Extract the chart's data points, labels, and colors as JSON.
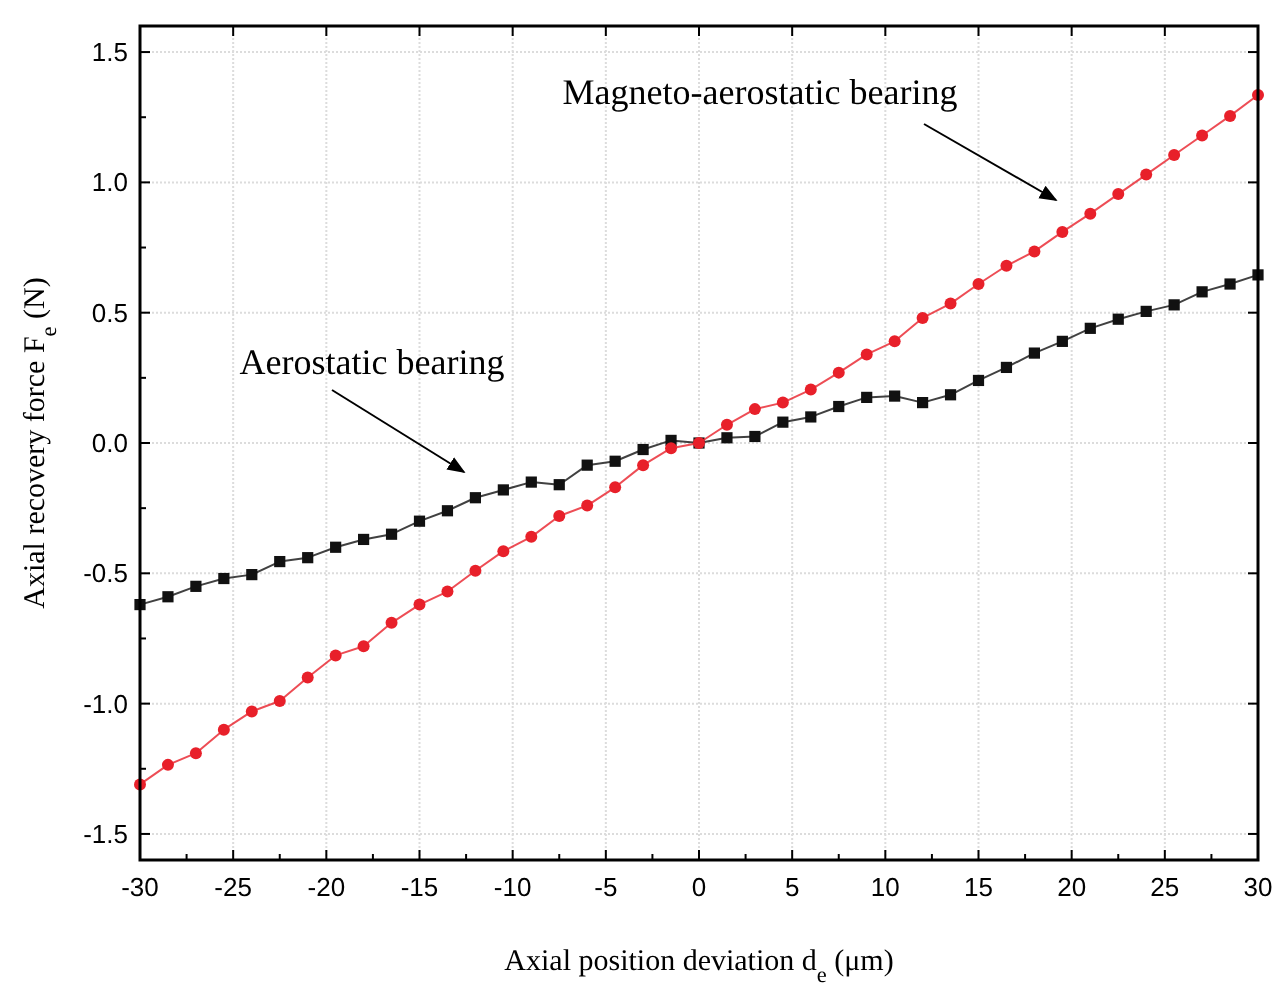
{
  "chart_data": {
    "type": "line",
    "xlabel": "Axial position deviation d$_{e}$  (μm)",
    "ylabel": "Axial recovery force F$_{e}$ (N)",
    "x": [
      -30,
      -28.5,
      -27,
      -25.5,
      -24,
      -22.5,
      -21,
      -19.5,
      -18,
      -16.5,
      -15,
      -13.5,
      -12,
      -10.5,
      -9,
      -7.5,
      -6,
      -4.5,
      -3,
      -1.5,
      0,
      1.5,
      3,
      4.5,
      6,
      7.5,
      9,
      10.5,
      12,
      13.5,
      15,
      16.5,
      18,
      19.5,
      21,
      22.5,
      24,
      25.5,
      27,
      28.5,
      30
    ],
    "series": [
      {
        "color": "#111111",
        "marker": "square",
        "values": [
          -0.62,
          -0.59,
          -0.55,
          -0.52,
          -0.505,
          -0.455,
          -0.44,
          -0.4,
          -0.37,
          -0.35,
          -0.3,
          -0.26,
          -0.21,
          -0.18,
          -0.15,
          -0.16,
          -0.085,
          -0.07,
          -0.025,
          0.01,
          0,
          0.02,
          0.025,
          0.08,
          0.1,
          0.14,
          0.175,
          0.18,
          0.155,
          0.185,
          0.24,
          0.29,
          0.345,
          0.39,
          0.44,
          0.475,
          0.505,
          0.53,
          0.58,
          0.61,
          0.645
        ]
      },
      {
        "color": "#e8202a",
        "marker": "circle",
        "values": [
          -1.31,
          -1.235,
          -1.19,
          -1.1,
          -1.03,
          -0.99,
          -0.9,
          -0.815,
          -0.78,
          -0.69,
          -0.62,
          -0.57,
          -0.49,
          -0.415,
          -0.36,
          -0.28,
          -0.24,
          -0.17,
          -0.085,
          -0.02,
          0,
          0.07,
          0.13,
          0.155,
          0.205,
          0.27,
          0.34,
          0.39,
          0.48,
          0.535,
          0.61,
          0.68,
          0.735,
          0.81,
          0.88,
          0.955,
          1.03,
          1.105,
          1.18,
          1.255,
          1.335
        ]
      }
    ],
    "xlim": [
      -30,
      30
    ],
    "xticks": [
      -30,
      -25,
      -20,
      -15,
      -10,
      -5,
      0,
      5,
      10,
      15,
      20,
      25,
      30
    ],
    "ylim": [
      -1.6,
      1.6
    ],
    "yticks": [
      {
        "value": -1.5,
        "label": "-1.5"
      },
      {
        "value": -1,
        "label": "-1.0"
      },
      {
        "value": -0.5,
        "label": "-0.5"
      },
      {
        "value": 0,
        "label": "0.0"
      },
      {
        "value": 0.5,
        "label": "0.5"
      },
      {
        "value": 1,
        "label": "1.0"
      },
      {
        "value": 1.5,
        "label": "1.5"
      }
    ],
    "grid": true,
    "line_style": "solid",
    "annotations": [
      "Magneto-aerostatic bearing",
      "Aerostatic bearing"
    ]
  }
}
